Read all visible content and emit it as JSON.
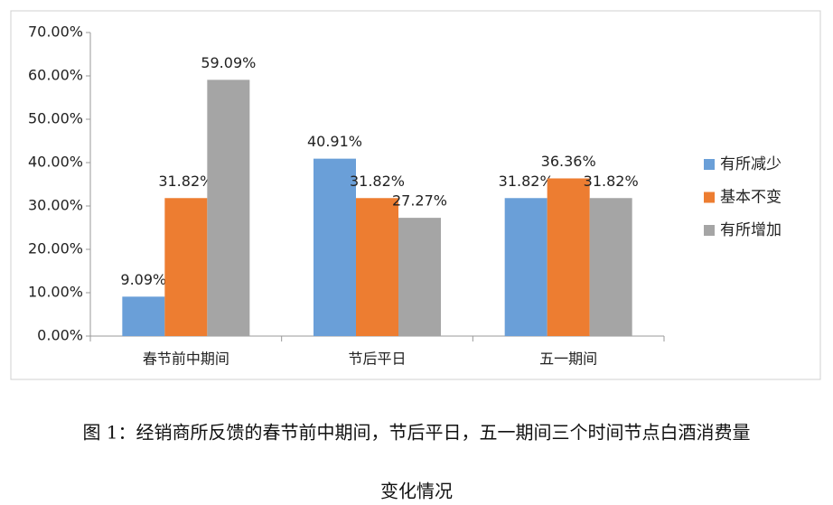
{
  "chart_data": {
    "type": "bar",
    "categories": [
      "春节前中期间",
      "节后平日",
      "五一期间"
    ],
    "series": [
      {
        "name": "有所减少",
        "color": "#6a9fd8",
        "values": [
          9.09,
          40.91,
          31.82
        ],
        "value_labels": [
          "9.09%",
          "40.91%",
          "31.82%"
        ]
      },
      {
        "name": "基本不变",
        "color": "#ed7d31",
        "values": [
          31.82,
          31.82,
          36.36
        ],
        "value_labels": [
          "31.82%",
          "31.82%",
          "36.36%"
        ]
      },
      {
        "name": "有所增加",
        "color": "#a5a5a5",
        "values": [
          59.09,
          27.27,
          31.82
        ],
        "value_labels": [
          "59.09%",
          "27.27%",
          "31.82%"
        ]
      }
    ],
    "ylim": [
      0,
      70
    ],
    "yticks": [
      {
        "value": 0,
        "label": "0.00%"
      },
      {
        "value": 10,
        "label": "10.00%"
      },
      {
        "value": 20,
        "label": "20.00%"
      },
      {
        "value": 30,
        "label": "30.00%"
      },
      {
        "value": 40,
        "label": "40.00%"
      },
      {
        "value": 50,
        "label": "50.00%"
      },
      {
        "value": 60,
        "label": "60.00%"
      },
      {
        "value": 70,
        "label": "70.00%"
      }
    ],
    "grid": false,
    "legend": "right"
  },
  "caption": [
    "图 1：经销商所反馈的春节前中期间，节后平日，五一期间三个时间节点白酒消费量",
    "变化情况"
  ]
}
